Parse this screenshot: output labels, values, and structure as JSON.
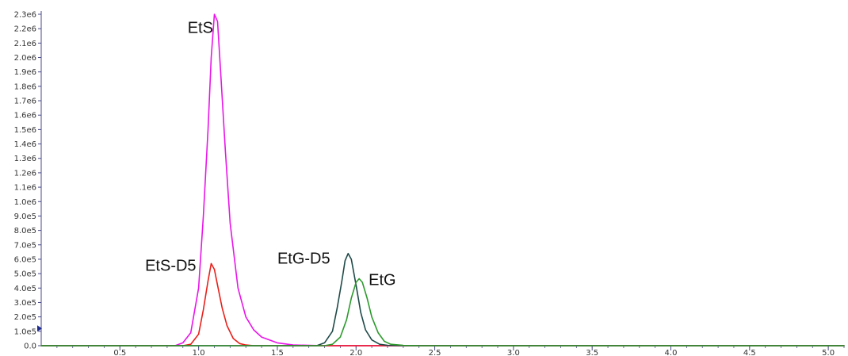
{
  "chart_data": {
    "type": "line",
    "title": "",
    "xlabel": "",
    "ylabel": "",
    "xlim": [
      0,
      5.1
    ],
    "ylim": [
      0,
      2300000
    ],
    "x_ticks": [
      0.5,
      1.0,
      1.5,
      2.0,
      2.5,
      3.0,
      3.5,
      4.0,
      4.5,
      5.0
    ],
    "x_tick_labels": [
      "0.5",
      "1.0",
      "1.5",
      "2.0",
      "2.5",
      "3.0",
      "3.5",
      "4.0",
      "4.5",
      "5.0"
    ],
    "y_ticks": [
      0,
      100000,
      200000,
      300000,
      400000,
      500000,
      600000,
      700000,
      800000,
      900000,
      1000000,
      1100000,
      1200000,
      1300000,
      1400000,
      1500000,
      1600000,
      1700000,
      1800000,
      1900000,
      2000000,
      2100000,
      2200000,
      2300000
    ],
    "y_tick_labels": [
      "0.0",
      "1.0e5",
      "2.0e5",
      "3.0e5",
      "4.0e5",
      "5.0e5",
      "6.0e5",
      "7.0e5",
      "8.0e5",
      "9.0e5",
      "1.0e6",
      "1.1e6",
      "1.2e6",
      "1.3e6",
      "1.4e6",
      "1.5e6",
      "1.6e6",
      "1.7e6",
      "1.8e6",
      "1.9e6",
      "2.0e6",
      "2.1e6",
      "2.2e6",
      "2.3e6"
    ],
    "grid": false,
    "legend": "none",
    "series": [
      {
        "name": "EtS",
        "color": "#e815e8",
        "x": [
          0.0,
          0.85,
          0.9,
          0.95,
          1.0,
          1.03,
          1.06,
          1.08,
          1.1,
          1.12,
          1.14,
          1.17,
          1.2,
          1.25,
          1.3,
          1.35,
          1.4,
          1.5,
          1.6,
          1.8,
          5.1
        ],
        "y": [
          0,
          0,
          20000,
          90000,
          400000,
          900000,
          1500000,
          2000000,
          2300000,
          2250000,
          1900000,
          1350000,
          850000,
          400000,
          200000,
          110000,
          60000,
          20000,
          5000,
          0,
          0
        ]
      },
      {
        "name": "EtS-D5",
        "color": "#e8201a",
        "x": [
          0.0,
          0.9,
          0.95,
          1.0,
          1.03,
          1.06,
          1.08,
          1.1,
          1.12,
          1.15,
          1.18,
          1.22,
          1.26,
          1.3,
          1.35,
          5.1
        ],
        "y": [
          0,
          0,
          10000,
          80000,
          250000,
          450000,
          570000,
          530000,
          420000,
          260000,
          140000,
          50000,
          15000,
          5000,
          0,
          0
        ]
      },
      {
        "name": "EtG-D5",
        "color": "#1f4a48",
        "x": [
          0.0,
          1.75,
          1.8,
          1.85,
          1.88,
          1.91,
          1.93,
          1.95,
          1.97,
          2.0,
          2.03,
          2.06,
          2.1,
          2.15,
          2.2,
          2.3,
          5.1
        ],
        "y": [
          0,
          0,
          20000,
          100000,
          260000,
          450000,
          590000,
          640000,
          600000,
          420000,
          230000,
          110000,
          40000,
          10000,
          3000,
          0,
          0
        ]
      },
      {
        "name": "EtG",
        "color": "#2d9a2d",
        "x": [
          0.0,
          1.8,
          1.85,
          1.9,
          1.94,
          1.97,
          2.0,
          2.02,
          2.04,
          2.07,
          2.1,
          2.14,
          2.18,
          2.22,
          2.3,
          2.4,
          5.1
        ],
        "y": [
          0,
          0,
          10000,
          60000,
          180000,
          330000,
          440000,
          465000,
          440000,
          330000,
          200000,
          90000,
          30000,
          10000,
          2000,
          0,
          0
        ]
      }
    ],
    "annotations": [
      {
        "text": "EtS",
        "x": 0.93,
        "y": 2170000
      },
      {
        "text": "EtS-D5",
        "x": 0.66,
        "y": 520000
      },
      {
        "text": "EtG-D5",
        "x": 1.5,
        "y": 570000
      },
      {
        "text": "EtG",
        "x": 2.08,
        "y": 420000
      }
    ],
    "baseline_color": "#e815e8",
    "axis_color": "#4a4a8a",
    "marker_color": "#1f2c8f",
    "marker_y": 120000
  }
}
